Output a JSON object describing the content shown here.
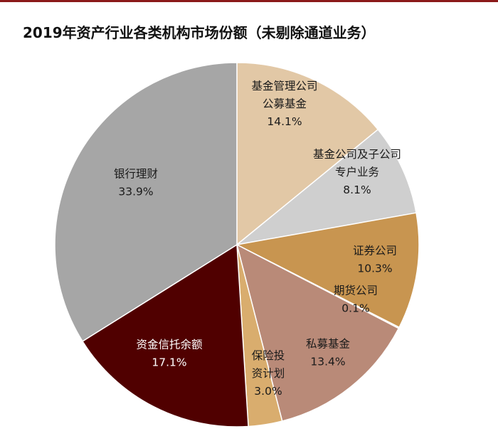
{
  "title": "2019年资产行业各类机构市场份额（未剔除通道业务）",
  "chart_data": {
    "type": "pie",
    "title": "2019年资产行业各类机构市场份额（未剔除通道业务）",
    "start_angle_deg": 0,
    "direction": "clockwise",
    "slices": [
      {
        "name_lines": [
          "基金管理公司",
          "公募基金"
        ],
        "label": "基金管理公司公募基金",
        "value": 14.1,
        "value_text": "14.1%",
        "color": "#e2c8a6",
        "text_color": "#1a1a1a"
      },
      {
        "name_lines": [
          "基金公司及子公司",
          "专户业务"
        ],
        "label": "基金公司及子公司专户业务",
        "value": 8.1,
        "value_text": "8.1%",
        "color": "#cfcfcf",
        "text_color": "#1a1a1a"
      },
      {
        "name_lines": [
          "证券公司"
        ],
        "label": "证券公司",
        "value": 10.3,
        "value_text": "10.3%",
        "color": "#c89550",
        "text_color": "#1a1a1a"
      },
      {
        "name_lines": [
          "期货公司"
        ],
        "label": "期货公司",
        "value": 0.1,
        "value_text": "0.1%",
        "color": "#a0a0a0",
        "text_color": "#1a1a1a"
      },
      {
        "name_lines": [
          "私募基金"
        ],
        "label": "私募基金",
        "value": 13.4,
        "value_text": "13.4%",
        "color": "#b98a78",
        "text_color": "#1a1a1a"
      },
      {
        "name_lines": [
          "保险投",
          "资计划"
        ],
        "label": "保险投资计划",
        "value": 3.0,
        "value_text": "3.0%",
        "color": "#d9ad6e",
        "text_color": "#1a1a1a"
      },
      {
        "name_lines": [
          "资金信托余额"
        ],
        "label": "资金信托余额",
        "value": 17.1,
        "value_text": "17.1%",
        "color": "#500000",
        "text_color": "#ffffff"
      },
      {
        "name_lines": [
          "银行理财"
        ],
        "label": "银行理财",
        "value": 33.9,
        "value_text": "33.9%",
        "color": "#a6a6a6",
        "text_color": "#1a1a1a"
      }
    ]
  }
}
